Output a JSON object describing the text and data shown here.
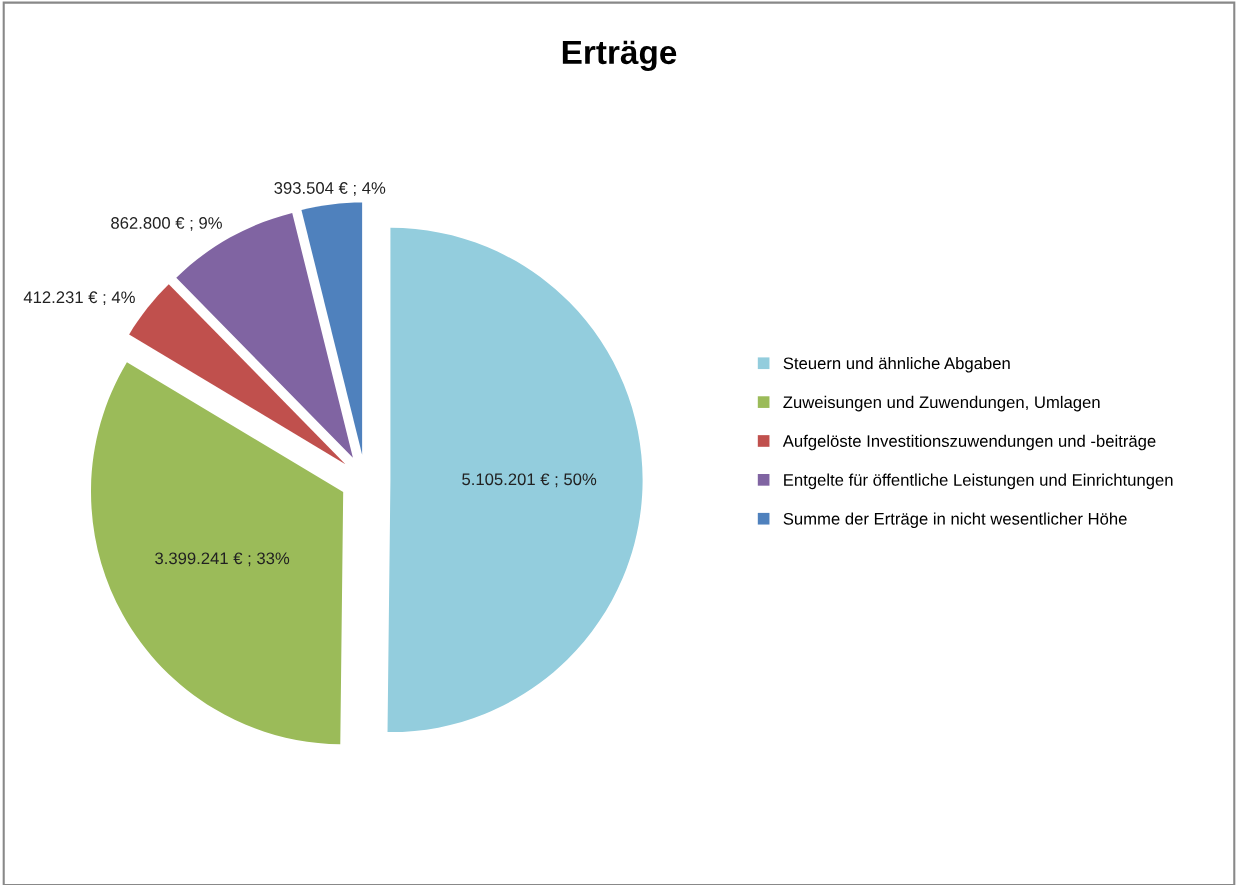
{
  "chart_data": {
    "type": "pie",
    "title": "Erträge",
    "categories": [
      "Steuern und ähnliche Abgaben",
      "Zuweisungen und Zuwendungen, Umlagen",
      "Aufgelöste Investitionszuwendungen und -beiträge",
      "Entgelte für öffentliche Leistungen und Einrichtungen",
      "Summe der Erträge in nicht wesentlicher Höhe"
    ],
    "values": [
      5105201,
      3399241,
      412231,
      862800,
      393504
    ],
    "colors": [
      "#93cddd",
      "#9bbb59",
      "#c0504d",
      "#8064a2",
      "#4f81bd"
    ],
    "value_labels": [
      "5.105.201 € ; 50%",
      "3.399.241 € ; 33%",
      "412.231 € ; 4%",
      "862.800 € ; 9%",
      "393.504 € ; 4%"
    ],
    "legend": "right"
  }
}
